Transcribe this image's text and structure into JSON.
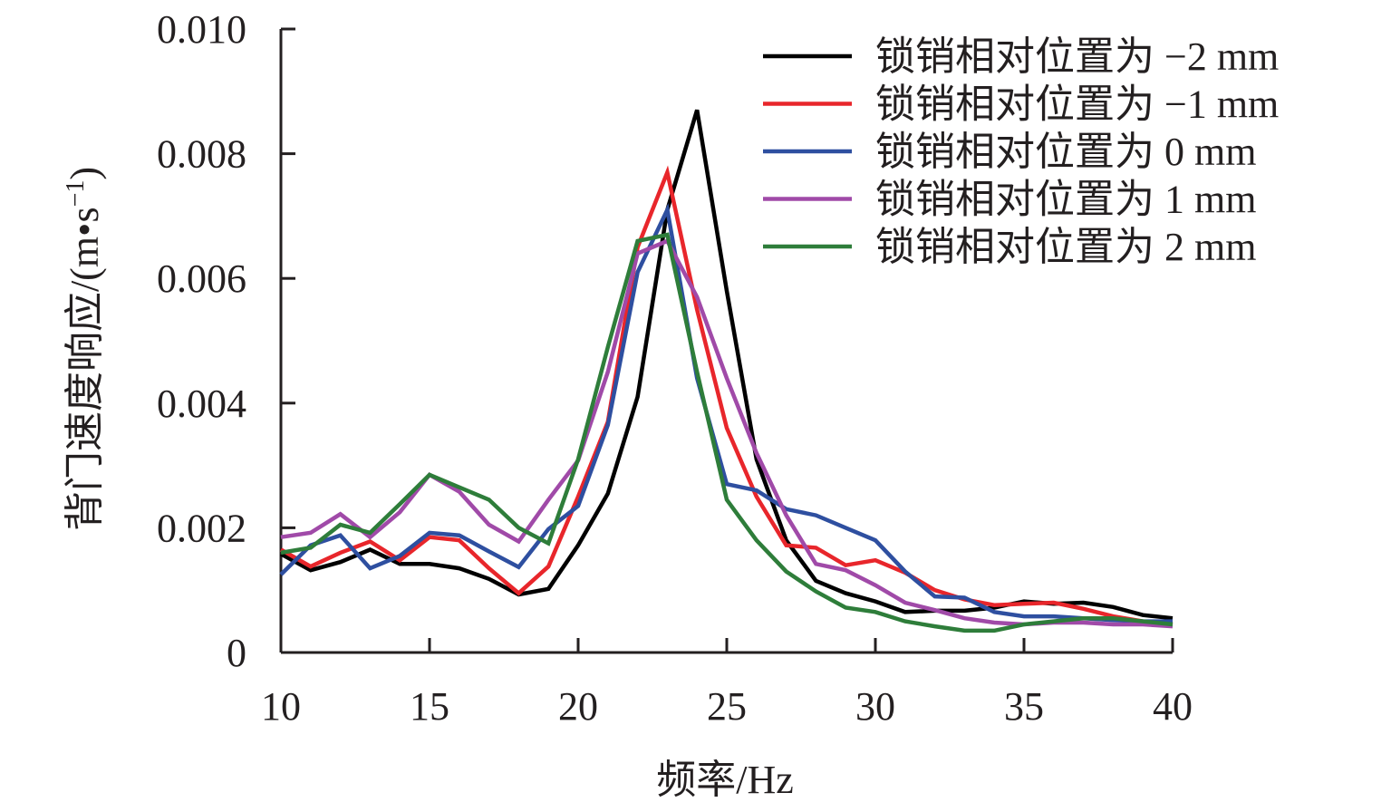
{
  "chart_data": {
    "type": "line",
    "title": "",
    "xlabel": "频率/Hz",
    "ylabel": "背门速度响应/(m•s",
    "ylabel_sup": "−1",
    "ylabel_close": ")",
    "xlim": [
      10,
      40
    ],
    "ylim": [
      0,
      0.01
    ],
    "x_ticks": [
      10,
      15,
      20,
      25,
      30,
      35,
      40
    ],
    "x_tick_labels": [
      "10",
      "15",
      "20",
      "25",
      "30",
      "35",
      "40"
    ],
    "y_ticks": [
      0,
      0.002,
      0.004,
      0.006,
      0.008,
      0.01
    ],
    "y_tick_labels": [
      "0",
      "0.002",
      "0.004",
      "0.006",
      "0.008",
      "0.010"
    ],
    "grid": false,
    "legend_position": "top-right",
    "x": [
      10,
      11,
      12,
      13,
      14,
      15,
      16,
      17,
      18,
      19,
      20,
      21,
      22,
      23,
      24,
      25,
      26,
      27,
      28,
      29,
      30,
      31,
      32,
      33,
      34,
      35,
      36,
      37,
      38,
      39,
      40
    ],
    "series": [
      {
        "name": "锁销相对位置为 −2 mm",
        "color": "#000000",
        "values": [
          0.00158,
          0.00132,
          0.00145,
          0.00165,
          0.00142,
          0.00142,
          0.00135,
          0.00118,
          0.00093,
          0.00102,
          0.00172,
          0.00255,
          0.0041,
          0.0071,
          0.0087,
          0.0058,
          0.0031,
          0.0018,
          0.00115,
          0.00095,
          0.00082,
          0.00065,
          0.00067,
          0.00067,
          0.00072,
          0.00082,
          0.00078,
          0.0008,
          0.00073,
          0.0006,
          0.00055
        ]
      },
      {
        "name": "锁销相对位置为 −1 mm",
        "color": "#e8262b",
        "values": [
          0.00165,
          0.00138,
          0.0016,
          0.00178,
          0.00148,
          0.00185,
          0.0018,
          0.00135,
          0.00095,
          0.00138,
          0.0025,
          0.0037,
          0.0065,
          0.0077,
          0.0055,
          0.0036,
          0.0025,
          0.00172,
          0.00168,
          0.0014,
          0.00148,
          0.00128,
          0.001,
          0.00085,
          0.00076,
          0.00078,
          0.0008,
          0.0007,
          0.00058,
          0.0005,
          0.00045
        ]
      },
      {
        "name": "锁销相对位置为 0 mm",
        "color": "#2e4fa0",
        "values": [
          0.00125,
          0.00172,
          0.00188,
          0.00135,
          0.00155,
          0.00192,
          0.00188,
          0.00162,
          0.00137,
          0.00198,
          0.00235,
          0.00365,
          0.0061,
          0.0071,
          0.0044,
          0.0027,
          0.0026,
          0.0023,
          0.0022,
          0.002,
          0.0018,
          0.0013,
          0.0009,
          0.00088,
          0.00065,
          0.00058,
          0.00058,
          0.00055,
          0.00052,
          0.0005,
          0.0005
        ]
      },
      {
        "name": "锁销相对位置为 1 mm",
        "color": "#a04aa8",
        "values": [
          0.00185,
          0.00192,
          0.00222,
          0.00185,
          0.00225,
          0.00285,
          0.00258,
          0.00205,
          0.00178,
          0.00245,
          0.00308,
          0.0045,
          0.0064,
          0.0066,
          0.0057,
          0.0044,
          0.0032,
          0.0022,
          0.00142,
          0.00132,
          0.00108,
          0.0008,
          0.00068,
          0.00055,
          0.00048,
          0.00045,
          0.00048,
          0.00048,
          0.00045,
          0.00045,
          0.00042
        ]
      },
      {
        "name": "锁销相对位置为 2 mm",
        "color": "#2e7d3a",
        "values": [
          0.0016,
          0.00168,
          0.00205,
          0.00192,
          0.00238,
          0.00285,
          0.00265,
          0.00245,
          0.002,
          0.00175,
          0.0031,
          0.0049,
          0.0066,
          0.0067,
          0.0045,
          0.00245,
          0.0018,
          0.0013,
          0.00098,
          0.00072,
          0.00065,
          0.0005,
          0.00042,
          0.00035,
          0.00035,
          0.00045,
          0.0005,
          0.00055,
          0.00055,
          0.0005,
          0.00045
        ]
      }
    ]
  }
}
